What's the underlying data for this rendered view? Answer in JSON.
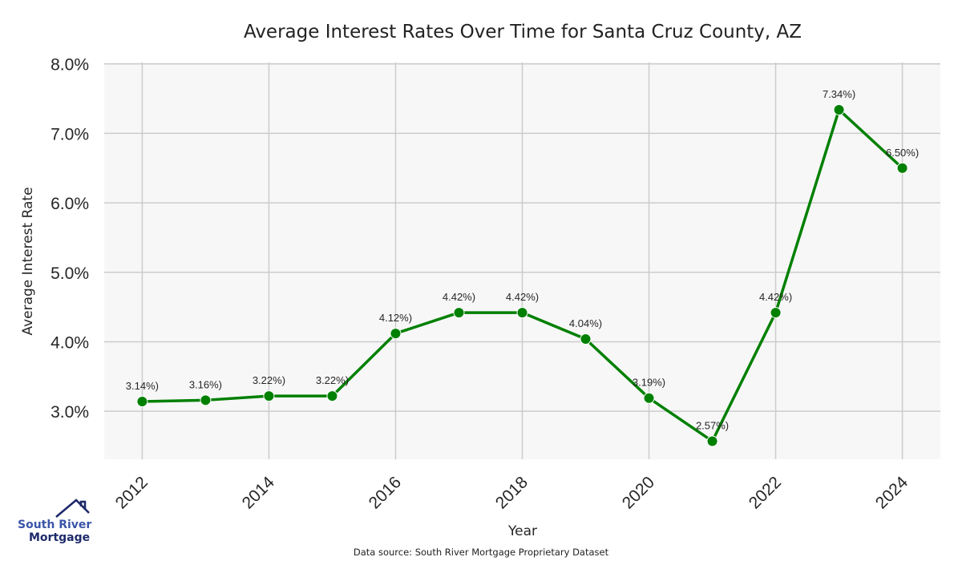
{
  "chart_data": {
    "type": "line",
    "title": "Average Interest Rates Over Time for Santa Cruz County, AZ",
    "xlabel": "Year",
    "ylabel": "Average Interest Rate",
    "x": [
      2012,
      2013,
      2014,
      2015,
      2016,
      2017,
      2018,
      2019,
      2020,
      2021,
      2022,
      2023,
      2024
    ],
    "values": [
      3.14,
      3.16,
      3.22,
      3.22,
      4.12,
      4.42,
      4.42,
      4.04,
      3.19,
      2.57,
      4.42,
      7.34,
      6.5
    ],
    "data_labels": [
      "3.14%)",
      "3.16%)",
      "3.22%)",
      "3.22%)",
      "4.12%)",
      "4.42%)",
      "4.42%)",
      "4.04%)",
      "3.19%)",
      "2.57%)",
      "4.42%)",
      "7.34%)",
      "6.50%)"
    ],
    "xticks": [
      "2012",
      "2014",
      "2016",
      "2018",
      "2020",
      "2022",
      "2024"
    ],
    "yticks": [
      "3.0%",
      "4.0%",
      "5.0%",
      "6.0%",
      "7.0%",
      "8.0%"
    ],
    "ytick_values": [
      3,
      4,
      5,
      6,
      7,
      8
    ],
    "xlim": [
      2011.4,
      2024.6
    ],
    "ylim": [
      2.31,
      8.02
    ],
    "grid": true,
    "line_color": "#008000",
    "background_color": "#f7f7f7",
    "grid_color": "#cccccc"
  },
  "footer": {
    "source": "Data source: South River Mortgage Proprietary Dataset"
  },
  "logo": {
    "line1": "South River",
    "line2": "Mortgage"
  }
}
